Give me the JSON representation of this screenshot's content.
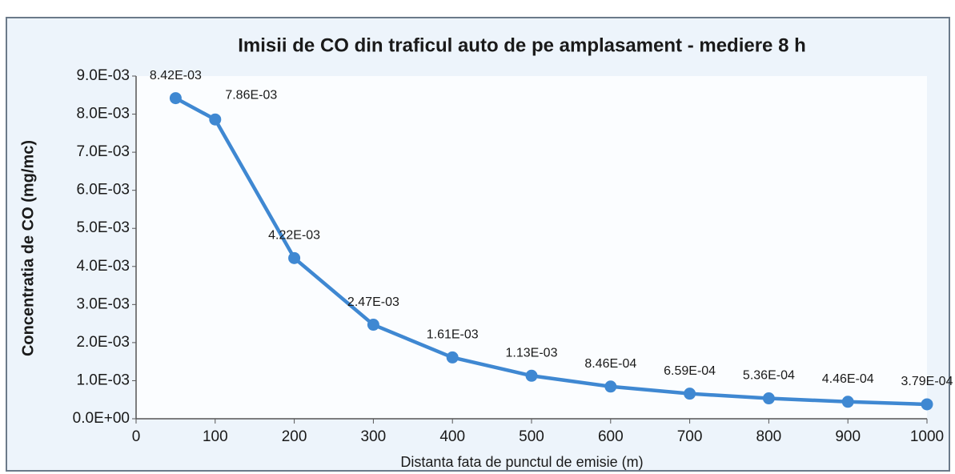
{
  "chart_data": {
    "type": "line",
    "title": "Imisii de CO din traficul auto de pe amplasament - mediere 8 h",
    "x_label": "Distanta fata de punctul de emisie (m)",
    "y_label": "Concentratia de CO (mg/mc)",
    "x": [
      50,
      100,
      200,
      300,
      400,
      500,
      600,
      700,
      800,
      900,
      1000
    ],
    "values": [
      0.00842,
      0.00786,
      0.00422,
      0.00247,
      0.00161,
      0.00113,
      0.000846,
      0.000659,
      0.000536,
      0.000446,
      0.000379
    ],
    "value_labels": [
      "8.42E-03",
      "7.86E-03",
      "4.22E-03",
      "2.47E-03",
      "1.61E-03",
      "1.13E-03",
      "8.46E-04",
      "6.59E-04",
      "5.36E-04",
      "4.46E-04",
      "3.79E-04"
    ],
    "color": "#3f88d2",
    "xlim": [
      0,
      1000
    ],
    "xticks": [
      0,
      100,
      200,
      300,
      400,
      500,
      600,
      700,
      800,
      900,
      1000
    ],
    "ylim": [
      0,
      0.009
    ],
    "yticks": [
      {
        "value": 0,
        "label": "0.0E+00"
      },
      {
        "value": 0.001,
        "label": "1.0E-03"
      },
      {
        "value": 0.002,
        "label": "2.0E-03"
      },
      {
        "value": 0.003,
        "label": "3.0E-03"
      },
      {
        "value": 0.004,
        "label": "4.0E-03"
      },
      {
        "value": 0.005,
        "label": "5.0E-03"
      },
      {
        "value": 0.006,
        "label": "6.0E-03"
      },
      {
        "value": 0.007,
        "label": "7.0E-03"
      },
      {
        "value": 0.008,
        "label": "8.0E-03"
      },
      {
        "value": 0.009,
        "label": "9.0E-03"
      }
    ],
    "grid": false
  }
}
